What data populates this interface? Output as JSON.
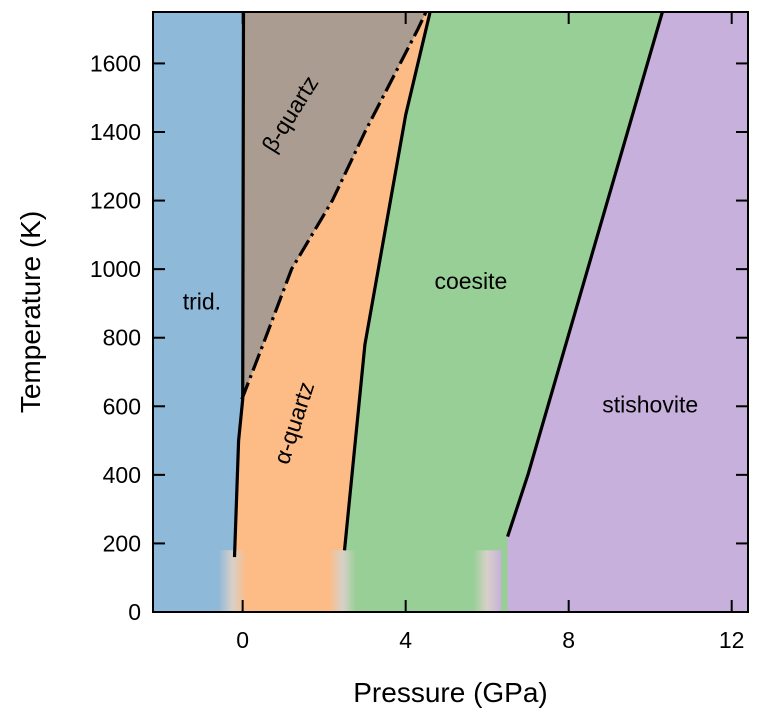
{
  "chart_data": {
    "type": "area",
    "title": "",
    "xlabel": "Pressure (GPa)",
    "ylabel": "Temperature (K)",
    "xlim": [
      -2.2,
      12.4
    ],
    "ylim": [
      0,
      1750
    ],
    "xticks": [
      0,
      4,
      8,
      12
    ],
    "yticks": [
      0,
      200,
      400,
      600,
      800,
      1000,
      1200,
      1400,
      1600
    ],
    "grid": false,
    "colors": {
      "trid": "#8fb9d8",
      "beta_quartz": "#aa9c90",
      "alpha_quartz": "#fdbb85",
      "coesite": "#97cf96",
      "stishovite": "#c7b1dc"
    },
    "regions": [
      {
        "key": "trid",
        "label": "trid.",
        "label_at": [
          -1.0,
          900
        ],
        "rotate": 0
      },
      {
        "key": "beta_quartz",
        "label": "β-quartz",
        "label_at": [
          1.2,
          1450
        ],
        "rotate": -58
      },
      {
        "key": "alpha_quartz",
        "label": "α-quartz",
        "label_at": [
          1.3,
          550
        ],
        "rotate": -72
      },
      {
        "key": "coesite",
        "label": "coesite",
        "label_at": [
          5.6,
          960
        ],
        "rotate": 0
      },
      {
        "key": "stishovite",
        "label": "stishovite",
        "label_at": [
          10.0,
          600
        ],
        "rotate": 0
      }
    ],
    "boundaries": {
      "trid_quartz": [
        [
          -0.2,
          160
        ],
        [
          -0.1,
          500
        ],
        [
          0.0,
          620
        ],
        [
          0.02,
          1750
        ]
      ],
      "alpha_beta": [
        [
          -0.02,
          620
        ],
        [
          0.5,
          780
        ],
        [
          1.2,
          1000
        ],
        [
          2.2,
          1200
        ],
        [
          3.0,
          1400
        ],
        [
          4.3,
          1700
        ],
        [
          4.5,
          1750
        ]
      ],
      "quartz_coesite": [
        [
          2.5,
          180
        ],
        [
          3.0,
          780
        ],
        [
          4.0,
          1450
        ],
        [
          4.6,
          1750
        ]
      ],
      "coesite_stishovite": [
        [
          6.5,
          220
        ],
        [
          7.0,
          400
        ],
        [
          10.3,
          1750
        ]
      ]
    },
    "fade_transitions": [
      {
        "at_x": -0.25,
        "between": [
          "trid",
          "alpha_quartz"
        ]
      },
      {
        "at_x": 2.45,
        "between": [
          "alpha_quartz",
          "coesite"
        ]
      },
      {
        "at_x": 6.0,
        "between": [
          "coesite",
          "stishovite"
        ]
      }
    ]
  }
}
